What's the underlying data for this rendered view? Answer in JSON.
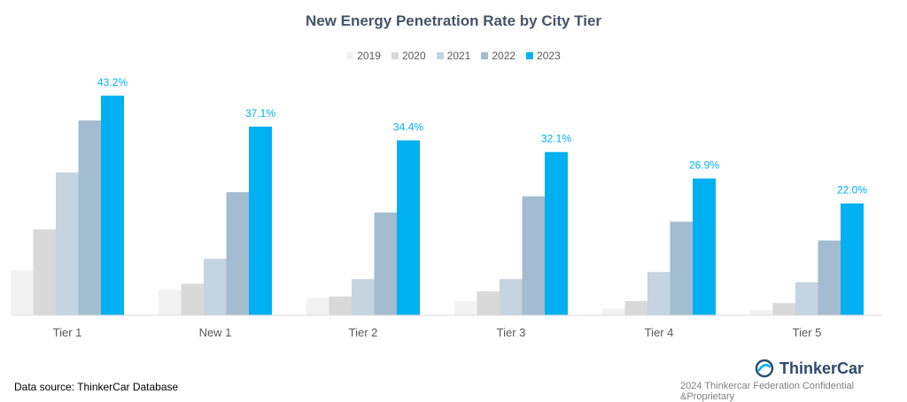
{
  "chart_data": {
    "type": "bar",
    "title": "New Energy Penetration Rate by City Tier",
    "categories": [
      "Tier 1",
      "New 1",
      "Tier 2",
      "Tier 3",
      "Tier 4",
      "Tier 5"
    ],
    "series": [
      {
        "name": "2019",
        "color": "#f2f2f2",
        "values": [
          8.8,
          5.0,
          3.4,
          2.7,
          1.3,
          1.0
        ]
      },
      {
        "name": "2020",
        "color": "#d9d9d9",
        "values": [
          16.9,
          6.2,
          3.7,
          4.7,
          2.8,
          2.4
        ]
      },
      {
        "name": "2021",
        "color": "#c4d4e1",
        "values": [
          28.1,
          11.1,
          7.1,
          7.1,
          8.5,
          6.5
        ]
      },
      {
        "name": "2022",
        "color": "#a3bccf",
        "values": [
          38.3,
          24.2,
          20.2,
          23.4,
          18.4,
          14.7
        ]
      },
      {
        "name": "2023",
        "color": "#00b0f0",
        "values": [
          43.2,
          37.1,
          34.4,
          32.1,
          26.9,
          22.0
        ]
      }
    ],
    "data_labels": [
      "43.2%",
      "37.1%",
      "34.4%",
      "32.1%",
      "26.9%",
      "22.0%"
    ],
    "label_color": "#00b0f0",
    "ylim": [
      0,
      45
    ],
    "legend_position": "top-center",
    "grid": false
  },
  "footer": {
    "source": "Data source: ThinkerCar Database",
    "brand": "ThinkerCar",
    "copyright": "2024 Thinkercar Federation Confidential &Proprietary"
  }
}
